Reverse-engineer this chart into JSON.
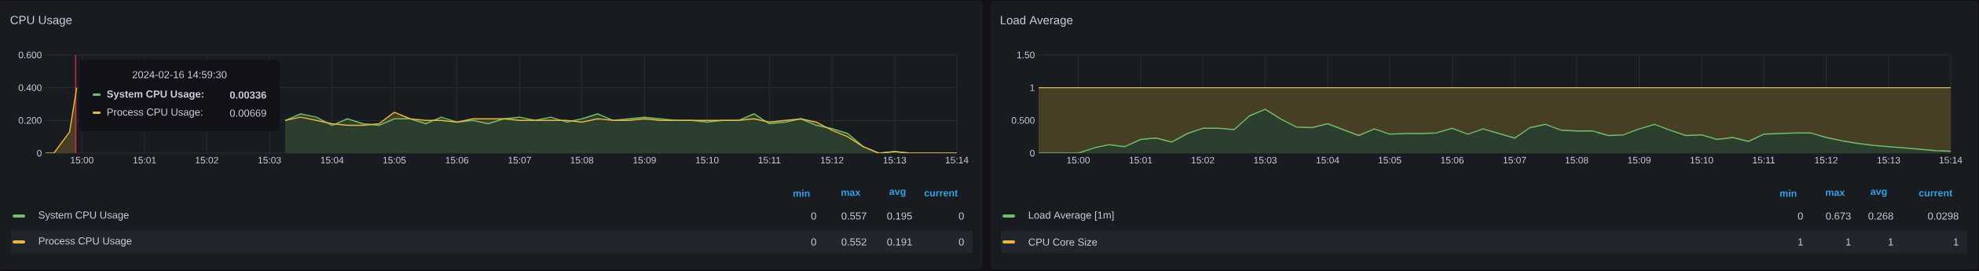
{
  "chart_data": [
    {
      "type": "area",
      "title": "CPU Usage",
      "x": [
        14.9903,
        14.9925,
        14.9967,
        14.9986,
        15.025,
        15.0542,
        15.0583,
        15.0625,
        15.0667,
        15.0708,
        15.075,
        15.0792,
        15.0833,
        15.0875,
        15.0917,
        15.0958,
        15.1,
        15.1042,
        15.1083,
        15.1125,
        15.1167,
        15.1208,
        15.125,
        15.1292,
        15.1333,
        15.1375,
        15.1417,
        15.1458,
        15.15,
        15.1542,
        15.1583,
        15.1625,
        15.1667,
        15.1708,
        15.175,
        15.1792,
        15.1833,
        15.1875,
        15.1917,
        15.1958,
        15.2,
        15.2042,
        15.2083,
        15.2125,
        15.2167,
        15.2208,
        15.225,
        15.2292,
        15.2333
      ],
      "series": [
        {
          "name": "System CPU Usage",
          "color": "#73bf69",
          "values": [
            null,
            null,
            null,
            null,
            null,
            0.2,
            0.24,
            0.22,
            0.17,
            0.21,
            0.18,
            0.17,
            0.21,
            0.21,
            0.18,
            0.22,
            0.19,
            0.2,
            0.18,
            0.21,
            0.22,
            0.2,
            0.22,
            0.19,
            0.21,
            0.24,
            0.2,
            0.21,
            0.22,
            0.21,
            0.2,
            0.2,
            0.19,
            0.2,
            0.2,
            0.24,
            0.18,
            0.19,
            0.21,
            0.17,
            0.15,
            0.12,
            0.04,
            0,
            0.01,
            0,
            0,
            0,
            0
          ]
        },
        {
          "name": "Process CPU Usage",
          "color": "#eab839",
          "values": [
            0,
            0,
            0.13,
            0.4,
            null,
            0.2,
            0.22,
            0.2,
            0.18,
            0.17,
            0.17,
            0.18,
            0.25,
            0.21,
            0.2,
            0.2,
            0.19,
            0.21,
            0.21,
            0.21,
            0.2,
            0.2,
            0.2,
            0.2,
            0.19,
            0.21,
            0.2,
            0.2,
            0.21,
            0.2,
            0.2,
            0.2,
            0.2,
            0.2,
            0.2,
            0.21,
            0.19,
            0.2,
            0.21,
            0.19,
            0.14,
            0.1,
            0.04,
            0,
            0.01,
            0,
            0,
            0,
            0
          ]
        }
      ],
      "xlim": [
        14.9903,
        15.2333
      ],
      "ylim": [
        0,
        0.6
      ],
      "xticks": [
        {
          "value": 15,
          "label": "15:00"
        },
        {
          "value": 15.0167,
          "label": "15:01"
        },
        {
          "value": 15.0333,
          "label": "15:02"
        },
        {
          "value": 15.05,
          "label": "15:03"
        },
        {
          "value": 15.0667,
          "label": "15:04"
        },
        {
          "value": 15.0833,
          "label": "15:05"
        },
        {
          "value": 15.1,
          "label": "15:06"
        },
        {
          "value": 15.1167,
          "label": "15:07"
        },
        {
          "value": 15.1333,
          "label": "15:08"
        },
        {
          "value": 15.15,
          "label": "15:09"
        },
        {
          "value": 15.1667,
          "label": "15:10"
        },
        {
          "value": 15.1833,
          "label": "15:11"
        },
        {
          "value": 15.2,
          "label": "15:12"
        },
        {
          "value": 15.2167,
          "label": "15:13"
        },
        {
          "value": 15.2333,
          "label": "15:14"
        }
      ],
      "yticks": [
        0,
        {
          "value": 0.2,
          "label": "0.200"
        },
        {
          "value": 0.4,
          "label": "0.400"
        },
        {
          "value": 0.6,
          "label": "0.600"
        }
      ],
      "grid": true,
      "legend": "bottom",
      "ref_lines": [
        {
          "axis": "x",
          "value": 14.9983,
          "color": "#e02f44"
        }
      ],
      "annotations": [
        "min",
        "max",
        "avg",
        "current",
        "0",
        "0.557",
        "0.195",
        "0",
        "0",
        "0.552",
        "0.191",
        "0",
        "2024-02-16 14:59:30",
        "System CPU Usage:",
        "0.00336",
        "Process CPU Usage:",
        "0.00669"
      ]
    },
    {
      "type": "area",
      "title": "Load Average",
      "x": [
        14.9894,
        15,
        15.0042,
        15.0083,
        15.0125,
        15.0167,
        15.0208,
        15.025,
        15.0292,
        15.0333,
        15.0375,
        15.0417,
        15.0458,
        15.05,
        15.0542,
        15.0583,
        15.0625,
        15.0667,
        15.0708,
        15.075,
        15.0792,
        15.0833,
        15.0875,
        15.0917,
        15.0958,
        15.1,
        15.1042,
        15.1083,
        15.1125,
        15.1167,
        15.1208,
        15.125,
        15.1292,
        15.1333,
        15.1375,
        15.1417,
        15.1458,
        15.15,
        15.1542,
        15.1583,
        15.1625,
        15.1667,
        15.1708,
        15.175,
        15.1792,
        15.1833,
        15.1875,
        15.1917,
        15.1958,
        15.2,
        15.2042,
        15.2083,
        15.2125,
        15.2167,
        15.2208,
        15.225,
        15.2292,
        15.2333
      ],
      "series": [
        {
          "name": "Load Average [1m]",
          "color": "#73bf69",
          "values": [
            0,
            0,
            0.08,
            0.13,
            0.1,
            0.21,
            0.23,
            0.17,
            0.3,
            0.38,
            0.38,
            0.36,
            0.57,
            0.67,
            0.52,
            0.4,
            0.39,
            0.45,
            0.36,
            0.27,
            0.37,
            0.29,
            0.3,
            0.3,
            0.31,
            0.38,
            0.29,
            0.37,
            0.3,
            0.23,
            0.39,
            0.44,
            0.35,
            0.34,
            0.34,
            0.27,
            0.28,
            0.37,
            0.44,
            0.35,
            0.27,
            0.28,
            0.21,
            0.24,
            0.18,
            0.29,
            0.3,
            0.31,
            0.31,
            0.24,
            0.19,
            0.15,
            0.12,
            0.1,
            0.08,
            0.06,
            0.04,
            0.03
          ]
        },
        {
          "name": "CPU Core Size",
          "color": "#eab839",
          "values": [
            1,
            1,
            1,
            1,
            1,
            1,
            1,
            1,
            1,
            1,
            1,
            1,
            1,
            1,
            1,
            1,
            1,
            1,
            1,
            1,
            1,
            1,
            1,
            1,
            1,
            1,
            1,
            1,
            1,
            1,
            1,
            1,
            1,
            1,
            1,
            1,
            1,
            1,
            1,
            1,
            1,
            1,
            1,
            1,
            1,
            1,
            1,
            1,
            1,
            1,
            1,
            1,
            1,
            1,
            1,
            1,
            1,
            1
          ]
        }
      ],
      "xlim": [
        14.9894,
        15.2333
      ],
      "ylim": [
        0,
        1.5
      ],
      "xticks": [
        {
          "value": 15,
          "label": "15:00"
        },
        {
          "value": 15.0167,
          "label": "15:01"
        },
        {
          "value": 15.0333,
          "label": "15:02"
        },
        {
          "value": 15.05,
          "label": "15:03"
        },
        {
          "value": 15.0667,
          "label": "15:04"
        },
        {
          "value": 15.0833,
          "label": "15:05"
        },
        {
          "value": 15.1,
          "label": "15:06"
        },
        {
          "value": 15.1167,
          "label": "15:07"
        },
        {
          "value": 15.1333,
          "label": "15:08"
        },
        {
          "value": 15.15,
          "label": "15:09"
        },
        {
          "value": 15.1667,
          "label": "15:10"
        },
        {
          "value": 15.1833,
          "label": "15:11"
        },
        {
          "value": 15.2,
          "label": "15:12"
        },
        {
          "value": 15.2167,
          "label": "15:13"
        },
        {
          "value": 15.2333,
          "label": "15:14"
        }
      ],
      "yticks": [
        0,
        {
          "value": 0.5,
          "label": "0.500"
        },
        1,
        {
          "value": 1.5,
          "label": "1.50"
        }
      ],
      "grid": true,
      "legend": "bottom",
      "annotations": [
        "min",
        "max",
        "avg",
        "current",
        "0",
        "0.673",
        "0.268",
        "0.0298",
        "1",
        "1",
        "1",
        "1"
      ]
    }
  ]
}
